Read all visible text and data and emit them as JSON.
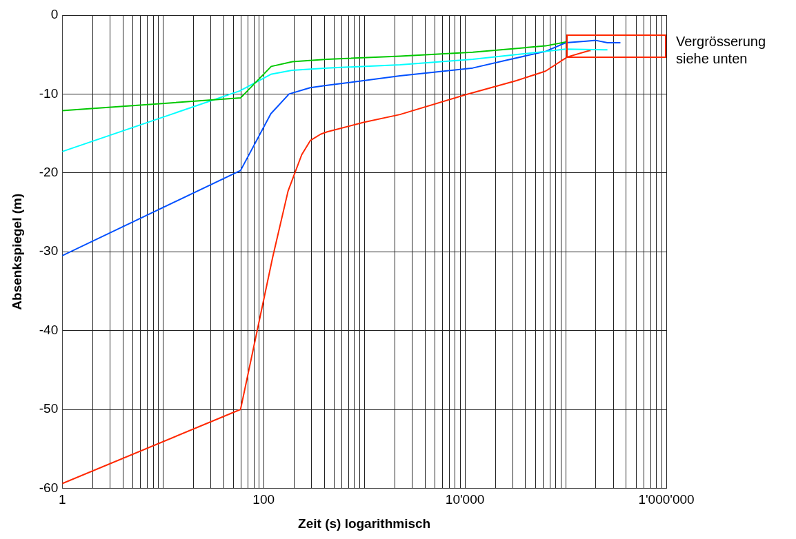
{
  "chart_data": {
    "type": "line",
    "xlabel": "Zeit (s) logarithmisch",
    "ylabel": "Absenkspiegel (m)",
    "log": "x",
    "grid": true,
    "legend": false,
    "marker": "none",
    "line_style": "solid",
    "xlim": [
      1,
      1000000
    ],
    "ylim": [
      -60,
      0
    ],
    "xticks": [
      {
        "value": 1,
        "label": "1"
      },
      {
        "value": 2,
        "label": null
      },
      {
        "value": 3,
        "label": null
      },
      {
        "value": 4,
        "label": null
      },
      {
        "value": 5,
        "label": null
      },
      {
        "value": 6,
        "label": null
      },
      {
        "value": 7,
        "label": null
      },
      {
        "value": 8,
        "label": null
      },
      {
        "value": 9,
        "label": null
      },
      {
        "value": 10,
        "label": null
      },
      {
        "value": 20,
        "label": null
      },
      {
        "value": 30,
        "label": null
      },
      {
        "value": 40,
        "label": null
      },
      {
        "value": 50,
        "label": null
      },
      {
        "value": 60,
        "label": null
      },
      {
        "value": 70,
        "label": null
      },
      {
        "value": 80,
        "label": null
      },
      {
        "value": 90,
        "label": null
      },
      {
        "value": 100,
        "label": "100"
      },
      {
        "value": 200,
        "label": null
      },
      {
        "value": 300,
        "label": null
      },
      {
        "value": 400,
        "label": null
      },
      {
        "value": 500,
        "label": null
      },
      {
        "value": 600,
        "label": null
      },
      {
        "value": 700,
        "label": null
      },
      {
        "value": 800,
        "label": null
      },
      {
        "value": 900,
        "label": null
      },
      {
        "value": 1000,
        "label": null
      },
      {
        "value": 2000,
        "label": null
      },
      {
        "value": 3000,
        "label": null
      },
      {
        "value": 4000,
        "label": null
      },
      {
        "value": 5000,
        "label": null
      },
      {
        "value": 6000,
        "label": null
      },
      {
        "value": 7000,
        "label": null
      },
      {
        "value": 8000,
        "label": null
      },
      {
        "value": 9000,
        "label": null
      },
      {
        "value": 10000,
        "label": "10'000"
      },
      {
        "value": 20000,
        "label": null
      },
      {
        "value": 30000,
        "label": null
      },
      {
        "value": 40000,
        "label": null
      },
      {
        "value": 50000,
        "label": null
      },
      {
        "value": 60000,
        "label": null
      },
      {
        "value": 70000,
        "label": null
      },
      {
        "value": 80000,
        "label": null
      },
      {
        "value": 90000,
        "label": null
      },
      {
        "value": 100000,
        "label": null
      },
      {
        "value": 200000,
        "label": null
      },
      {
        "value": 300000,
        "label": null
      },
      {
        "value": 400000,
        "label": null
      },
      {
        "value": 500000,
        "label": null
      },
      {
        "value": 600000,
        "label": null
      },
      {
        "value": 700000,
        "label": null
      },
      {
        "value": 800000,
        "label": null
      },
      {
        "value": 900000,
        "label": null
      },
      {
        "value": 1000000,
        "label": "1'000'000"
      }
    ],
    "yticks": [
      0,
      -10,
      -20,
      -30,
      -40,
      -50,
      -60
    ],
    "annotations": [
      "Vergrösserung siehe unten"
    ],
    "series": [
      {
        "color": "#00c800",
        "x": [
          1,
          59,
          119,
          193,
          428,
          2262,
          11950,
          63100,
          100000
        ],
        "values": [
          -12.1,
          -10.5,
          -6.5,
          -5.9,
          -5.6,
          -5.2,
          -4.7,
          -3.9,
          -3.4
        ]
      },
      {
        "color": "#00ffff",
        "x": [
          1,
          58,
          118,
          191,
          428,
          2262,
          11950,
          63100,
          100000,
          240000,
          260000
        ],
        "values": [
          -17.3,
          -9.6,
          -7.5,
          -7.0,
          -6.7,
          -6.3,
          -5.6,
          -4.6,
          -4.3,
          -4.4,
          -4.4
        ]
      },
      {
        "color": "#0050ff",
        "x": [
          1,
          59,
          118,
          179,
          290,
          428,
          2262,
          11950,
          26000,
          63100,
          100000,
          160000,
          200000,
          260000,
          350000
        ],
        "values": [
          -30.5,
          -19.7,
          -12.5,
          -10.0,
          -9.2,
          -8.9,
          -7.7,
          -6.7,
          -5.7,
          -4.6,
          -3.5,
          -3.3,
          -3.2,
          -3.5,
          -3.5
        ]
      },
      {
        "color": "#ff2800",
        "x": [
          1,
          59,
          123,
          175,
          239,
          291,
          368,
          428,
          984,
          2262,
          10100,
          32400,
          63100,
          104000,
          171000,
          177000
        ],
        "values": [
          -59.4,
          -50.0,
          -30.7,
          -22.3,
          -17.7,
          -15.9,
          -15.1,
          -14.8,
          -13.6,
          -12.6,
          -10.1,
          -8.3,
          -7.1,
          -5.3,
          -4.5,
          -4.5
        ]
      }
    ]
  }
}
